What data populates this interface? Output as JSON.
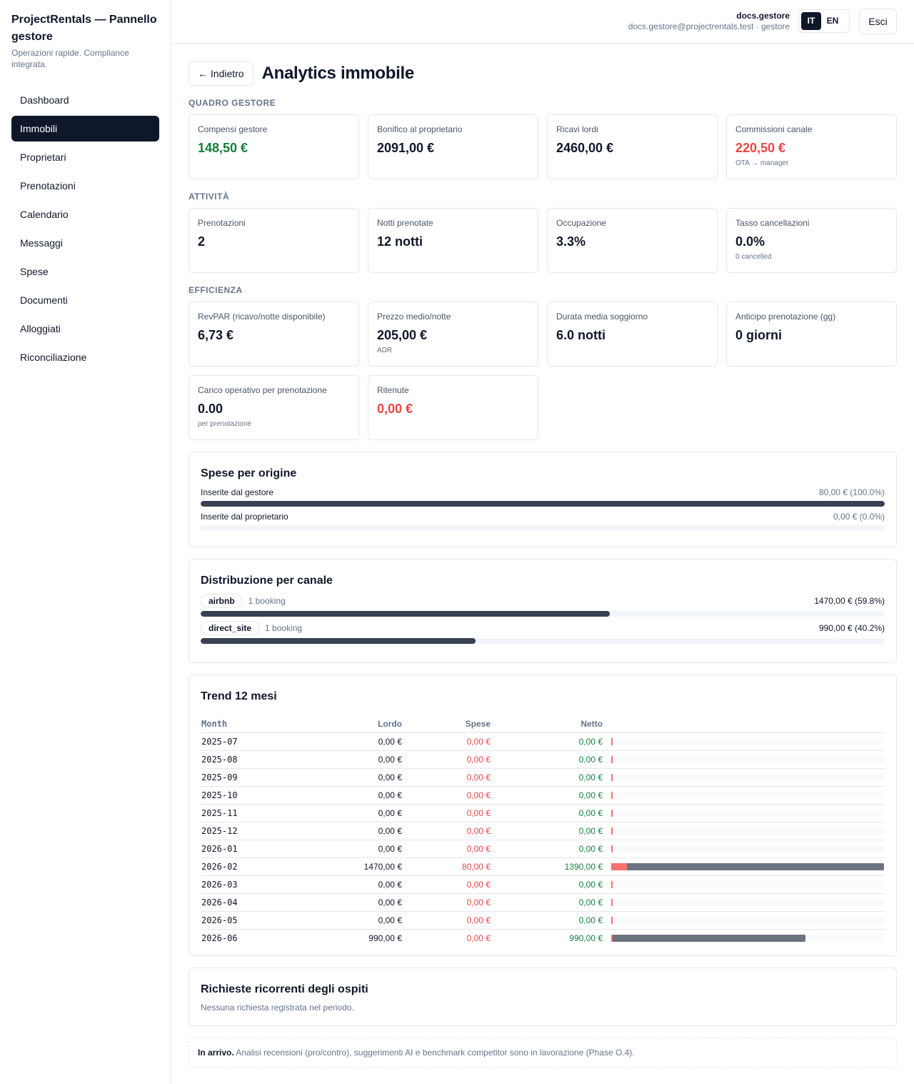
{
  "sidebar": {
    "brand_title": "ProjectRentals — Pannello gestore",
    "brand_subtitle": "Operazioni rapide. Compliance integrata.",
    "items": [
      {
        "label": "Dashboard",
        "active": false
      },
      {
        "label": "Immobili",
        "active": true
      },
      {
        "label": "Proprietari",
        "active": false
      },
      {
        "label": "Prenotazioni",
        "active": false
      },
      {
        "label": "Calendario",
        "active": false
      },
      {
        "label": "Messaggi",
        "active": false
      },
      {
        "label": "Spese",
        "active": false
      },
      {
        "label": "Documenti",
        "active": false
      },
      {
        "label": "Alloggiati",
        "active": false
      },
      {
        "label": "Riconciliazione",
        "active": false
      }
    ]
  },
  "header": {
    "user_name": "docs.gestore",
    "user_email": "docs.gestore@projectrentals.test · gestore",
    "lang_it": "IT",
    "lang_en": "EN",
    "active_lang": "IT",
    "logout_label": "Esci"
  },
  "page": {
    "back_label": "← Indietro",
    "title": "Analytics immobile"
  },
  "sections": {
    "manager": {
      "label": "QUADRO GESTORE",
      "cards": [
        {
          "label": "Compensi gestore",
          "value": "148,50 €",
          "tone": "green",
          "note": ""
        },
        {
          "label": "Bonifico al proprietario",
          "value": "2091,00 €",
          "tone": "",
          "note": ""
        },
        {
          "label": "Ricavi lordi",
          "value": "2460,00 €",
          "tone": "",
          "note": ""
        },
        {
          "label": "Commissioni canale",
          "value": "220,50 €",
          "tone": "red",
          "note": "OTA → manager"
        }
      ]
    },
    "activity": {
      "label": "ATTIVITÀ",
      "cards": [
        {
          "label": "Prenotazioni",
          "value": "2",
          "tone": "",
          "note": ""
        },
        {
          "label": "Notti prenotate",
          "value": "12 notti",
          "tone": "",
          "note": ""
        },
        {
          "label": "Occupazione",
          "value": "3.3%",
          "tone": "",
          "note": ""
        },
        {
          "label": "Tasso cancellazioni",
          "value": "0.0%",
          "tone": "",
          "note": "0 cancelled"
        }
      ]
    },
    "efficiency": {
      "label": "EFFICIENZA",
      "cards": [
        {
          "label": "RevPAR (ricavo/notte disponibile)",
          "value": "6,73 €",
          "tone": "",
          "note": ""
        },
        {
          "label": "Prezzo medio/notte",
          "value": "205,00 €",
          "tone": "",
          "note": "ADR"
        },
        {
          "label": "Durata media soggiorno",
          "value": "6.0 notti",
          "tone": "",
          "note": ""
        },
        {
          "label": "Anticipo prenotazione (gg)",
          "value": "0 giorni",
          "tone": "",
          "note": ""
        },
        {
          "label": "Carico operativo per prenotazione",
          "value": "0.00",
          "tone": "",
          "note": "per prenotazione"
        },
        {
          "label": "Ritenute",
          "value": "0,00 €",
          "tone": "red",
          "note": ""
        }
      ]
    }
  },
  "expenses_origin": {
    "title": "Spese per origine",
    "rows": [
      {
        "label": "Inserite dal gestore",
        "value": "80,00 € (100.0%)",
        "pct": 100.0
      },
      {
        "label": "Inserite dal proprietario",
        "value": "0,00 € (0.0%)",
        "pct": 0.0
      }
    ]
  },
  "channels": {
    "title": "Distribuzione per canale",
    "rows": [
      {
        "name": "airbnb",
        "count": "1 booking",
        "value": "1470,00 € (59.8%)",
        "pct": 59.8
      },
      {
        "name": "direct_site",
        "count": "1 booking",
        "value": "990,00 € (40.2%)",
        "pct": 40.2
      }
    ]
  },
  "trend": {
    "title": "Trend 12 mesi",
    "headers": {
      "month": "Month",
      "lordo": "Lordo",
      "spese": "Spese",
      "netto": "Netto"
    },
    "max_net": 1390,
    "rows": [
      {
        "month": "2025-07",
        "lordo": "0,00 €",
        "spese": "0,00 €",
        "netto": "0,00 €",
        "net": 0,
        "exp": 0
      },
      {
        "month": "2025-08",
        "lordo": "0,00 €",
        "spese": "0,00 €",
        "netto": "0,00 €",
        "net": 0,
        "exp": 0
      },
      {
        "month": "2025-09",
        "lordo": "0,00 €",
        "spese": "0,00 €",
        "netto": "0,00 €",
        "net": 0,
        "exp": 0
      },
      {
        "month": "2025-10",
        "lordo": "0,00 €",
        "spese": "0,00 €",
        "netto": "0,00 €",
        "net": 0,
        "exp": 0
      },
      {
        "month": "2025-11",
        "lordo": "0,00 €",
        "spese": "0,00 €",
        "netto": "0,00 €",
        "net": 0,
        "exp": 0
      },
      {
        "month": "2025-12",
        "lordo": "0,00 €",
        "spese": "0,00 €",
        "netto": "0,00 €",
        "net": 0,
        "exp": 0
      },
      {
        "month": "2026-01",
        "lordo": "0,00 €",
        "spese": "0,00 €",
        "netto": "0,00 €",
        "net": 0,
        "exp": 0
      },
      {
        "month": "2026-02",
        "lordo": "1470,00 €",
        "spese": "80,00 €",
        "netto": "1390,00 €",
        "net": 1390,
        "exp": 80
      },
      {
        "month": "2026-03",
        "lordo": "0,00 €",
        "spese": "0,00 €",
        "netto": "0,00 €",
        "net": 0,
        "exp": 0
      },
      {
        "month": "2026-04",
        "lordo": "0,00 €",
        "spese": "0,00 €",
        "netto": "0,00 €",
        "net": 0,
        "exp": 0
      },
      {
        "month": "2026-05",
        "lordo": "0,00 €",
        "spese": "0,00 €",
        "netto": "0,00 €",
        "net": 0,
        "exp": 0
      },
      {
        "month": "2026-06",
        "lordo": "990,00 €",
        "spese": "0,00 €",
        "netto": "990,00 €",
        "net": 990,
        "exp": 0
      }
    ]
  },
  "requests": {
    "title": "Richieste ricorrenti degli ospiti",
    "empty": "Nessuna richiesta registrata nel periodo."
  },
  "coming_soon": {
    "label": "In arrivo.",
    "text": "Analisi recensioni (pro/contro), suggerimenti AI e benchmark competitor sono in lavorazione (Phase O.4)."
  },
  "colors": {
    "sidebar_active": "#0f172a",
    "positive": "#15803d",
    "negative": "#ef4444",
    "bar": "#374151"
  }
}
